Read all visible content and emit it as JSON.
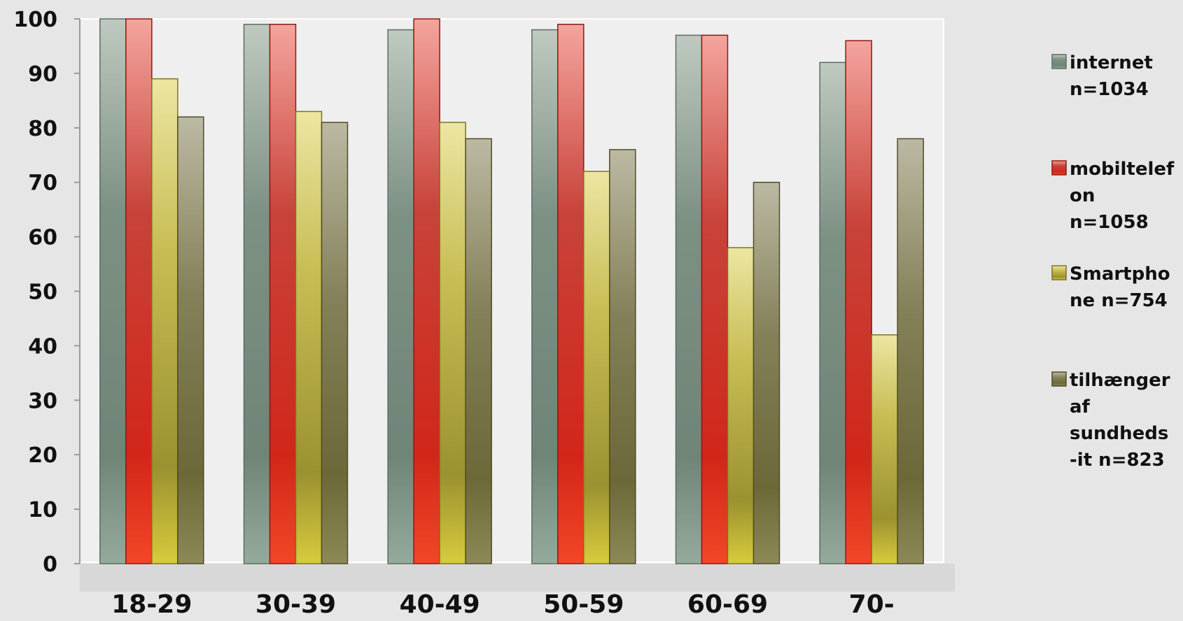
{
  "chart_data": {
    "type": "bar",
    "categories": [
      "18-29",
      "30-39",
      "40-49",
      "50-59",
      "60-69",
      "70-"
    ],
    "ylim": [
      0,
      100
    ],
    "yticks": [
      0,
      10,
      20,
      30,
      40,
      50,
      60,
      70,
      80,
      90,
      100
    ],
    "grid": false,
    "legend_position": "right",
    "series": [
      {
        "name": "internet n=1034",
        "legend_lines": [
          "internet",
          "n=1034"
        ],
        "color": "#6f8578",
        "values": [
          100,
          99,
          98,
          98,
          97,
          92
        ]
      },
      {
        "name": "mobiltelefon n=1058",
        "legend_lines": [
          "mobiltelef",
          "on",
          "n=1058"
        ],
        "color": "#d62a1a",
        "values": [
          100,
          99,
          100,
          99,
          97,
          96
        ]
      },
      {
        "name": "Smartphone n=754",
        "legend_lines": [
          "Smartpho",
          "ne n=754"
        ],
        "color": "#a59a2c",
        "values": [
          89,
          83,
          81,
          72,
          58,
          42
        ]
      },
      {
        "name": "tilhænger af sundheds-it n=823",
        "legend_lines": [
          "tilhænger",
          "af",
          "sundheds",
          "-it n=823"
        ],
        "color": "#6e6a3a",
        "values": [
          82,
          81,
          78,
          76,
          70,
          78
        ]
      }
    ]
  }
}
